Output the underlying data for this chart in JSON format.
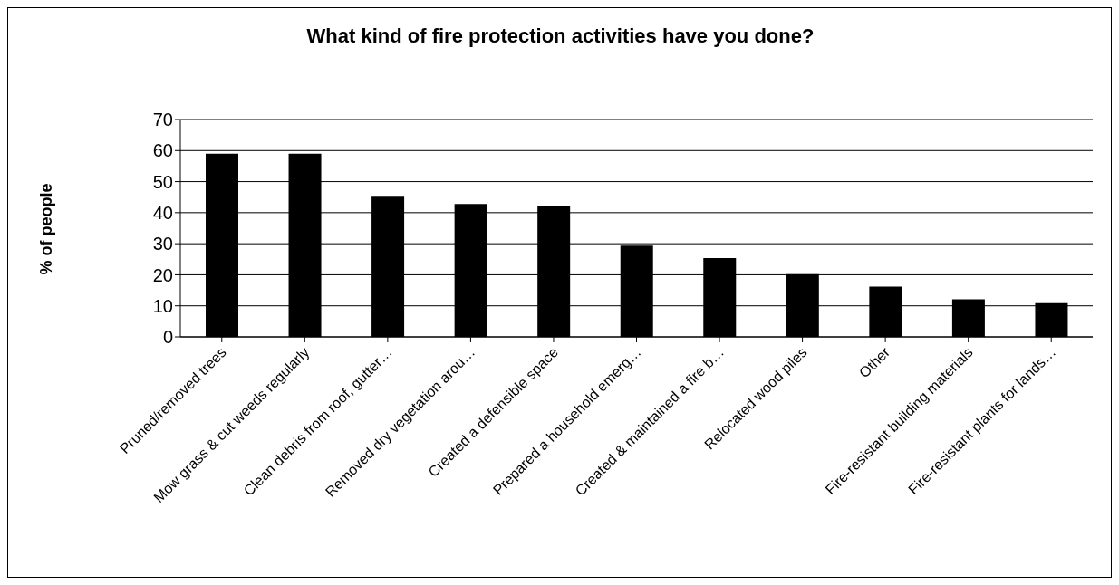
{
  "chart_data": {
    "type": "bar",
    "title": "What kind of fire protection activities have you done?",
    "ylabel": "% of people",
    "categories": [
      "Pruned/removed trees",
      "Mow grass & cut weeds regularly",
      "Clean debris from roof, gutter…",
      "Removed dry vegetation arou…",
      "Created a defensible space",
      "Prepared a household emerg…",
      "Created & maintained a fire b…",
      "Relocated wood piles",
      "Other",
      "Fire-resistant building materials",
      "Fire-resistant plants for lands…"
    ],
    "values": [
      59,
      59,
      45.4,
      42.8,
      42.3,
      29.4,
      25.4,
      20.2,
      16.2,
      12.1,
      10.9
    ],
    "color": "#000000",
    "ylim": [
      0,
      70
    ],
    "yticks": [
      0,
      10,
      20,
      30,
      40,
      50,
      60,
      70
    ],
    "grid": "y",
    "legend": false
  }
}
